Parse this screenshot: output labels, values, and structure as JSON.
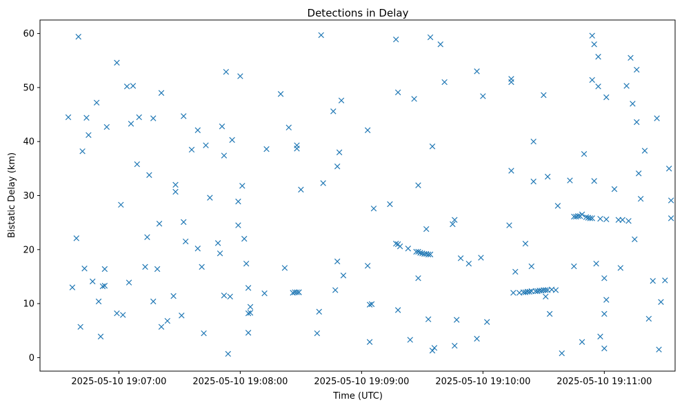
{
  "chart_data": {
    "type": "scatter",
    "title": "Detections in Delay",
    "xlabel": "Time (UTC)",
    "ylabel": "Bistatic Delay (km)",
    "x_range": [
      "2025-05-10 19:06:21",
      "2025-05-10 19:11:35"
    ],
    "ylim": [
      -2.5,
      62.5
    ],
    "x_ticks": [
      "2025-05-10 19:07:00",
      "2025-05-10 19:08:00",
      "2025-05-10 19:09:00",
      "2025-05-10 19:10:00",
      "2025-05-10 19:11:00"
    ],
    "y_ticks": [
      0,
      10,
      20,
      30,
      40,
      50,
      60
    ],
    "marker": "x",
    "color": "#1f77b4",
    "grid": false,
    "points": [
      [
        "19:06:35",
        44.5
      ],
      [
        "19:06:37",
        13.0
      ],
      [
        "19:06:39",
        22.1
      ],
      [
        "19:06:40",
        59.4
      ],
      [
        "19:06:41",
        5.7
      ],
      [
        "19:06:42",
        38.2
      ],
      [
        "19:06:43",
        16.5
      ],
      [
        "19:06:44",
        44.4
      ],
      [
        "19:06:45",
        41.2
      ],
      [
        "19:06:47",
        14.1
      ],
      [
        "19:06:49",
        47.2
      ],
      [
        "19:06:50",
        10.4
      ],
      [
        "19:06:51",
        3.9
      ],
      [
        "19:06:52",
        13.2
      ],
      [
        "19:06:53",
        16.4
      ],
      [
        "19:06:53",
        13.3
      ],
      [
        "19:06:54",
        42.7
      ],
      [
        "19:06:59",
        8.2
      ],
      [
        "19:06:59",
        54.6
      ],
      [
        "19:07:01",
        28.3
      ],
      [
        "19:07:02",
        7.9
      ],
      [
        "19:07:04",
        50.2
      ],
      [
        "19:07:05",
        13.9
      ],
      [
        "19:07:06",
        43.3
      ],
      [
        "19:07:07",
        50.3
      ],
      [
        "19:07:09",
        35.8
      ],
      [
        "19:07:10",
        44.5
      ],
      [
        "19:07:13",
        16.8
      ],
      [
        "19:07:14",
        22.3
      ],
      [
        "19:07:15",
        33.8
      ],
      [
        "19:07:17",
        44.3
      ],
      [
        "19:07:17",
        10.4
      ],
      [
        "19:07:19",
        16.4
      ],
      [
        "19:07:20",
        24.8
      ],
      [
        "19:07:21",
        49.0
      ],
      [
        "19:07:21",
        5.7
      ],
      [
        "19:07:24",
        6.8
      ],
      [
        "19:07:27",
        11.4
      ],
      [
        "19:07:28",
        30.7
      ],
      [
        "19:07:28",
        32.0
      ],
      [
        "19:07:31",
        7.8
      ],
      [
        "19:07:32",
        44.7
      ],
      [
        "19:07:32",
        25.1
      ],
      [
        "19:07:33",
        21.5
      ],
      [
        "19:07:36",
        38.5
      ],
      [
        "19:07:39",
        42.1
      ],
      [
        "19:07:39",
        20.2
      ],
      [
        "19:07:41",
        16.8
      ],
      [
        "19:07:42",
        4.5
      ],
      [
        "19:07:43",
        39.3
      ],
      [
        "19:07:45",
        29.6
      ],
      [
        "19:07:49",
        21.2
      ],
      [
        "19:07:50",
        19.3
      ],
      [
        "19:07:51",
        42.8
      ],
      [
        "19:07:52",
        37.4
      ],
      [
        "19:07:52",
        11.5
      ],
      [
        "19:07:53",
        52.9
      ],
      [
        "19:07:54",
        0.7
      ],
      [
        "19:07:55",
        11.3
      ],
      [
        "19:07:56",
        40.3
      ],
      [
        "19:07:59",
        28.9
      ],
      [
        "19:07:59",
        24.5
      ],
      [
        "19:08:00",
        52.1
      ],
      [
        "19:08:01",
        31.8
      ],
      [
        "19:08:02",
        22.0
      ],
      [
        "19:08:03",
        17.4
      ],
      [
        "19:08:04",
        12.9
      ],
      [
        "19:08:04",
        4.6
      ],
      [
        "19:08:04",
        8.2
      ],
      [
        "19:08:05",
        8.3
      ],
      [
        "19:08:05",
        9.4
      ],
      [
        "19:08:12",
        11.9
      ],
      [
        "19:08:13",
        38.6
      ],
      [
        "19:08:20",
        48.8
      ],
      [
        "19:08:22",
        16.6
      ],
      [
        "19:08:24",
        42.6
      ],
      [
        "19:08:26",
        12.0
      ],
      [
        "19:08:27",
        12.1
      ],
      [
        "19:08:28",
        12.1
      ],
      [
        "19:08:28",
        39.3
      ],
      [
        "19:08:28",
        38.7
      ],
      [
        "19:08:29",
        12.1
      ],
      [
        "19:08:29",
        12.1
      ],
      [
        "19:08:30",
        31.1
      ],
      [
        "19:08:38",
        4.5
      ],
      [
        "19:08:39",
        8.5
      ],
      [
        "19:08:40",
        59.7
      ],
      [
        "19:08:41",
        32.3
      ],
      [
        "19:08:46",
        45.6
      ],
      [
        "19:08:47",
        12.5
      ],
      [
        "19:08:48",
        17.8
      ],
      [
        "19:08:48",
        35.4
      ],
      [
        "19:08:49",
        38.0
      ],
      [
        "19:08:50",
        47.6
      ],
      [
        "19:08:51",
        15.2
      ],
      [
        "19:09:03",
        42.1
      ],
      [
        "19:09:03",
        17.0
      ],
      [
        "19:09:04",
        2.9
      ],
      [
        "19:09:04",
        9.8
      ],
      [
        "19:09:05",
        9.9
      ],
      [
        "19:09:06",
        27.6
      ],
      [
        "19:09:14",
        28.4
      ],
      [
        "19:09:17",
        21.1
      ],
      [
        "19:09:17",
        58.9
      ],
      [
        "19:09:18",
        49.1
      ],
      [
        "19:09:18",
        8.8
      ],
      [
        "19:09:18",
        21.0
      ],
      [
        "19:09:19",
        20.6
      ],
      [
        "19:09:23",
        20.2
      ],
      [
        "19:09:24",
        3.3
      ],
      [
        "19:09:26",
        47.9
      ],
      [
        "19:09:27",
        19.6
      ],
      [
        "19:09:28",
        31.9
      ],
      [
        "19:09:28",
        14.7
      ],
      [
        "19:09:28",
        19.6
      ],
      [
        "19:09:29",
        19.4
      ],
      [
        "19:09:30",
        19.3
      ],
      [
        "19:09:31",
        19.2
      ],
      [
        "19:09:32",
        23.8
      ],
      [
        "19:09:32",
        19.2
      ],
      [
        "19:09:33",
        7.1
      ],
      [
        "19:09:33",
        19.1
      ],
      [
        "19:09:34",
        59.3
      ],
      [
        "19:09:34",
        19.1
      ],
      [
        "19:09:35",
        1.3
      ],
      [
        "19:09:35",
        39.1
      ],
      [
        "19:09:36",
        1.8
      ],
      [
        "19:09:39",
        58.0
      ],
      [
        "19:09:41",
        51.0
      ],
      [
        "19:09:45",
        24.7
      ],
      [
        "19:09:46",
        25.5
      ],
      [
        "19:09:46",
        2.2
      ],
      [
        "19:09:47",
        7.0
      ],
      [
        "19:09:49",
        18.4
      ],
      [
        "19:09:53",
        17.4
      ],
      [
        "19:09:57",
        53.0
      ],
      [
        "19:09:57",
        3.5
      ],
      [
        "19:09:59",
        18.5
      ],
      [
        "19:10:00",
        48.4
      ],
      [
        "19:10:02",
        6.6
      ],
      [
        "19:10:13",
        24.5
      ],
      [
        "19:10:14",
        51.0
      ],
      [
        "19:10:14",
        51.6
      ],
      [
        "19:10:14",
        34.6
      ],
      [
        "19:10:15",
        12.0
      ],
      [
        "19:10:16",
        15.9
      ],
      [
        "19:10:18",
        12.0
      ],
      [
        "19:10:20",
        12.1
      ],
      [
        "19:10:21",
        21.1
      ],
      [
        "19:10:21",
        12.1
      ],
      [
        "19:10:22",
        12.2
      ],
      [
        "19:10:23",
        12.2
      ],
      [
        "19:10:24",
        16.9
      ],
      [
        "19:10:24",
        12.3
      ],
      [
        "19:10:25",
        40.0
      ],
      [
        "19:10:25",
        32.6
      ],
      [
        "19:10:26",
        12.3
      ],
      [
        "19:10:27",
        12.3
      ],
      [
        "19:10:28",
        12.4
      ],
      [
        "19:10:29",
        12.4
      ],
      [
        "19:10:30",
        48.6
      ],
      [
        "19:10:30",
        12.5
      ],
      [
        "19:10:31",
        11.3
      ],
      [
        "19:10:31",
        12.5
      ],
      [
        "19:10:32",
        33.5
      ],
      [
        "19:10:32",
        12.5
      ],
      [
        "19:10:33",
        8.1
      ],
      [
        "19:10:34",
        12.6
      ],
      [
        "19:10:36",
        12.5
      ],
      [
        "19:10:37",
        28.1
      ],
      [
        "19:10:39",
        0.8
      ],
      [
        "19:10:43",
        32.8
      ],
      [
        "19:10:45",
        26.1
      ],
      [
        "19:10:45",
        16.9
      ],
      [
        "19:10:46",
        26.1
      ],
      [
        "19:10:47",
        26.2
      ],
      [
        "19:10:48",
        26.2
      ],
      [
        "19:10:49",
        26.5
      ],
      [
        "19:10:49",
        2.9
      ],
      [
        "19:10:50",
        37.7
      ],
      [
        "19:10:51",
        26.0
      ],
      [
        "19:10:52",
        25.9
      ],
      [
        "19:10:53",
        25.8
      ],
      [
        "19:10:54",
        59.6
      ],
      [
        "19:10:54",
        51.4
      ],
      [
        "19:10:54",
        25.8
      ],
      [
        "19:10:55",
        58.0
      ],
      [
        "19:10:55",
        32.7
      ],
      [
        "19:10:56",
        17.4
      ],
      [
        "19:10:57",
        55.7
      ],
      [
        "19:10:57",
        50.2
      ],
      [
        "19:10:58",
        25.7
      ],
      [
        "19:10:58",
        3.9
      ],
      [
        "19:11:00",
        8.1
      ],
      [
        "19:11:00",
        1.7
      ],
      [
        "19:11:00",
        14.7
      ],
      [
        "19:11:01",
        10.7
      ],
      [
        "19:11:01",
        48.2
      ],
      [
        "19:11:01",
        25.6
      ],
      [
        "19:11:05",
        31.2
      ],
      [
        "19:11:07",
        25.5
      ],
      [
        "19:11:08",
        16.6
      ],
      [
        "19:11:09",
        25.5
      ],
      [
        "19:11:11",
        50.3
      ],
      [
        "19:11:12",
        25.3
      ],
      [
        "19:11:13",
        55.5
      ],
      [
        "19:11:14",
        47.0
      ],
      [
        "19:11:15",
        21.9
      ],
      [
        "19:11:16",
        43.6
      ],
      [
        "19:11:16",
        53.3
      ],
      [
        "19:11:17",
        34.1
      ],
      [
        "19:11:18",
        29.4
      ],
      [
        "19:11:20",
        38.3
      ],
      [
        "19:11:22",
        7.2
      ],
      [
        "19:11:24",
        14.2
      ],
      [
        "19:11:26",
        44.3
      ],
      [
        "19:11:27",
        1.5
      ],
      [
        "19:11:28",
        10.3
      ],
      [
        "19:11:30",
        14.3
      ],
      [
        "19:11:32",
        35.0
      ],
      [
        "19:11:33",
        25.8
      ],
      [
        "19:11:33",
        29.1
      ]
    ]
  }
}
